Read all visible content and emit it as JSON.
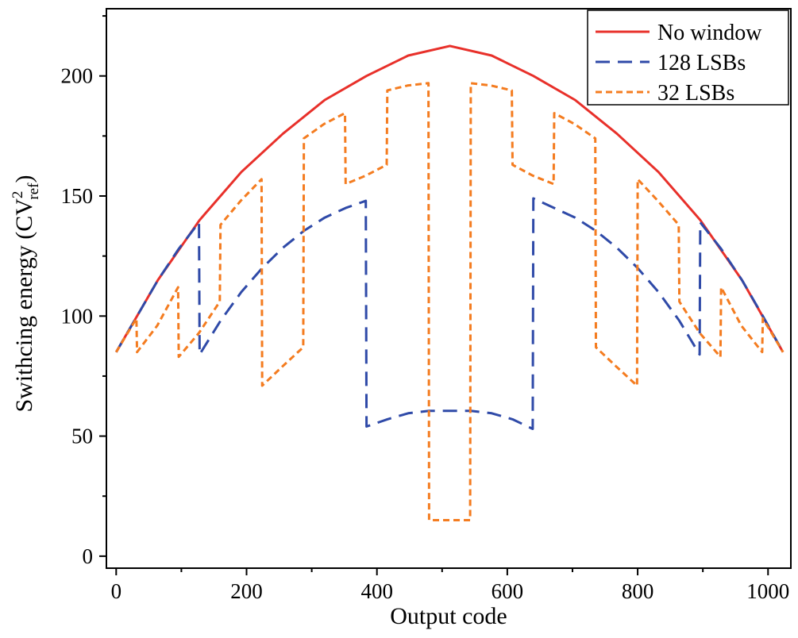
{
  "chart_data": {
    "type": "line",
    "title": "",
    "xlabel": "Output code",
    "ylabel_main": "Swithcing energy (CV",
    "ylabel_sup": "2",
    "ylabel_sub": "ref",
    "ylabel_close": ")",
    "xlim": [
      -15,
      1035
    ],
    "ylim": [
      -5,
      228
    ],
    "x_ticks": [
      0,
      200,
      400,
      600,
      800,
      1000
    ],
    "y_ticks": [
      0,
      50,
      100,
      150,
      200
    ],
    "x_tick_labels": [
      "0",
      "200",
      "400",
      "600",
      "800",
      "1000"
    ],
    "y_tick_labels": [
      "0",
      "50",
      "100",
      "150",
      "200"
    ],
    "legend_position": "top-right",
    "series": [
      {
        "name": "No window",
        "color": "#e8302a",
        "style": "solid",
        "points": [
          [
            0,
            85
          ],
          [
            64,
            115
          ],
          [
            128,
            140
          ],
          [
            192,
            160
          ],
          [
            256,
            176
          ],
          [
            320,
            190
          ],
          [
            384,
            200
          ],
          [
            448,
            208.5
          ],
          [
            512,
            212.5
          ],
          [
            576,
            208.5
          ],
          [
            640,
            200
          ],
          [
            704,
            190
          ],
          [
            768,
            176
          ],
          [
            832,
            160
          ],
          [
            896,
            140
          ],
          [
            960,
            115
          ],
          [
            1023,
            85
          ]
        ]
      },
      {
        "name": "128 LSBs",
        "color": "#2f4aa8",
        "style": "dashed",
        "points": [
          [
            0,
            85
          ],
          [
            32,
            100
          ],
          [
            64,
            115
          ],
          [
            96,
            128
          ],
          [
            127,
            139
          ],
          [
            128,
            84
          ],
          [
            160,
            98
          ],
          [
            192,
            110
          ],
          [
            224,
            120
          ],
          [
            256,
            128.5
          ],
          [
            288,
            135.5
          ],
          [
            320,
            141
          ],
          [
            352,
            145
          ],
          [
            383,
            148
          ],
          [
            384,
            54
          ],
          [
            416,
            57
          ],
          [
            448,
            59.5
          ],
          [
            480,
            60.5
          ],
          [
            512,
            60.5
          ],
          [
            544,
            60.5
          ],
          [
            576,
            59.5
          ],
          [
            608,
            57
          ],
          [
            639,
            53
          ],
          [
            640,
            149
          ],
          [
            672,
            145
          ],
          [
            704,
            141
          ],
          [
            736,
            135.5
          ],
          [
            768,
            128.5
          ],
          [
            800,
            120
          ],
          [
            832,
            110
          ],
          [
            864,
            98
          ],
          [
            895,
            84
          ],
          [
            896,
            139
          ],
          [
            928,
            128
          ],
          [
            960,
            115
          ],
          [
            992,
            100
          ],
          [
            1023,
            85
          ]
        ]
      },
      {
        "name": "32 LSBs",
        "color": "#f47c20",
        "style": "dotted-dash",
        "points": [
          [
            0,
            85
          ],
          [
            31,
            99
          ],
          [
            32,
            85
          ],
          [
            63,
            96
          ],
          [
            95,
            112
          ],
          [
            96,
            83
          ],
          [
            127,
            93
          ],
          [
            159,
            106
          ],
          [
            160,
            138
          ],
          [
            191,
            148
          ],
          [
            223,
            157
          ],
          [
            224,
            71
          ],
          [
            255,
            79
          ],
          [
            287,
            87
          ],
          [
            288,
            174
          ],
          [
            319,
            180
          ],
          [
            351,
            184.5
          ],
          [
            352,
            155
          ],
          [
            383,
            158.5
          ],
          [
            415,
            163
          ],
          [
            416,
            194
          ],
          [
            447,
            196
          ],
          [
            479,
            197
          ],
          [
            480,
            15
          ],
          [
            511,
            15
          ],
          [
            543,
            15
          ],
          [
            544,
            197
          ],
          [
            575,
            196
          ],
          [
            607,
            194
          ],
          [
            608,
            163
          ],
          [
            639,
            158.5
          ],
          [
            671,
            155
          ],
          [
            672,
            184.5
          ],
          [
            703,
            180
          ],
          [
            735,
            174
          ],
          [
            736,
            87
          ],
          [
            767,
            79
          ],
          [
            799,
            71
          ],
          [
            800,
            157
          ],
          [
            831,
            148
          ],
          [
            863,
            138
          ],
          [
            864,
            106
          ],
          [
            895,
            93
          ],
          [
            927,
            83
          ],
          [
            928,
            112
          ],
          [
            959,
            96
          ],
          [
            991,
            85
          ],
          [
            992,
            99
          ],
          [
            1023,
            85
          ]
        ]
      }
    ]
  }
}
